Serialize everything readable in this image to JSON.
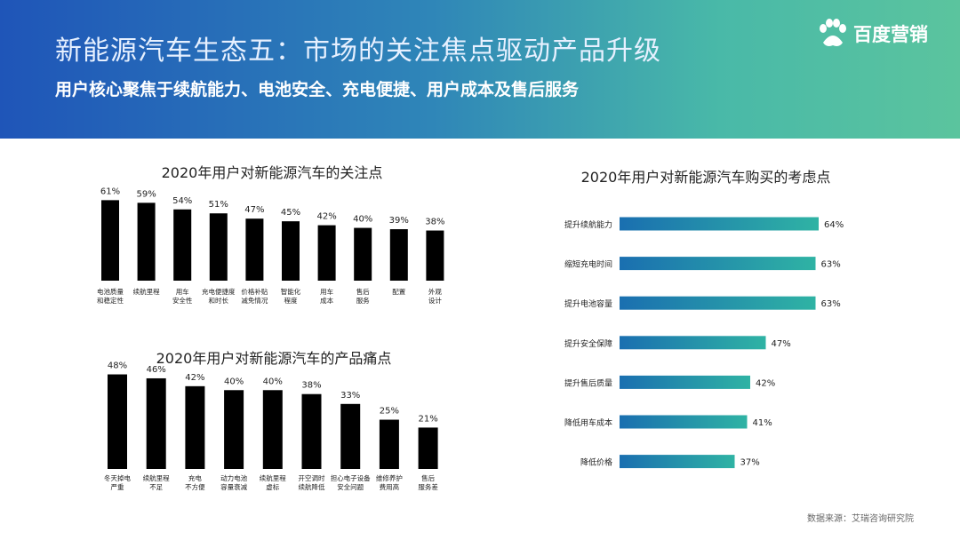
{
  "header": {
    "title": "新能源汽车生态五：市场的关注焦点驱动产品升级",
    "subtitle": "用户核心聚焦于续航能力、电池安全、充电便捷、用户成本及售后服务",
    "logo_text": "百度营销"
  },
  "footer": {
    "source": "数据来源：艾瑞咨询研究院"
  },
  "colors": {
    "black_bar": "#000000",
    "teal_start": "#1a6fb0",
    "teal_end": "#2fb3a4"
  },
  "chart_data": [
    {
      "type": "bar",
      "title": "2020年用户对新能源汽车的关注点",
      "categories": [
        "电池质量\n和稳定性",
        "续航里程",
        "用车\n安全性",
        "充电便捷度\n和时长",
        "价格补贴\n减免情况",
        "智能化\n程度",
        "用车\n成本",
        "售后\n服务",
        "配置",
        "外观\n设计"
      ],
      "values": [
        61,
        59,
        54,
        51,
        47,
        45,
        42,
        40,
        39,
        38
      ],
      "value_suffix": "%",
      "ylim": [
        0,
        70
      ]
    },
    {
      "type": "bar",
      "title": "2020年用户对新能源汽车的产品痛点",
      "categories": [
        "冬天掉电\n严重",
        "续航里程\n不足",
        "充电\n不方便",
        "动力电池\n容量衰减",
        "续航里程\n虚标",
        "开空调时\n续航降低",
        "担心电子设备\n安全问题",
        "维修养护\n费用高",
        "售后\n服务差"
      ],
      "values": [
        48,
        46,
        42,
        40,
        40,
        38,
        33,
        25,
        21
      ],
      "value_suffix": "%",
      "ylim": [
        0,
        55
      ]
    },
    {
      "type": "bar",
      "orientation": "horizontal",
      "title": "2020年用户对新能源汽车购买的考虑点",
      "categories": [
        "提升续航能力",
        "缩短充电时间",
        "提升电池容量",
        "提升安全保障",
        "提升售后质量",
        "降低用车成本",
        "降低价格"
      ],
      "values": [
        64,
        63,
        63,
        47,
        42,
        41,
        37
      ],
      "value_suffix": "%",
      "xlim": [
        0,
        70
      ]
    }
  ]
}
